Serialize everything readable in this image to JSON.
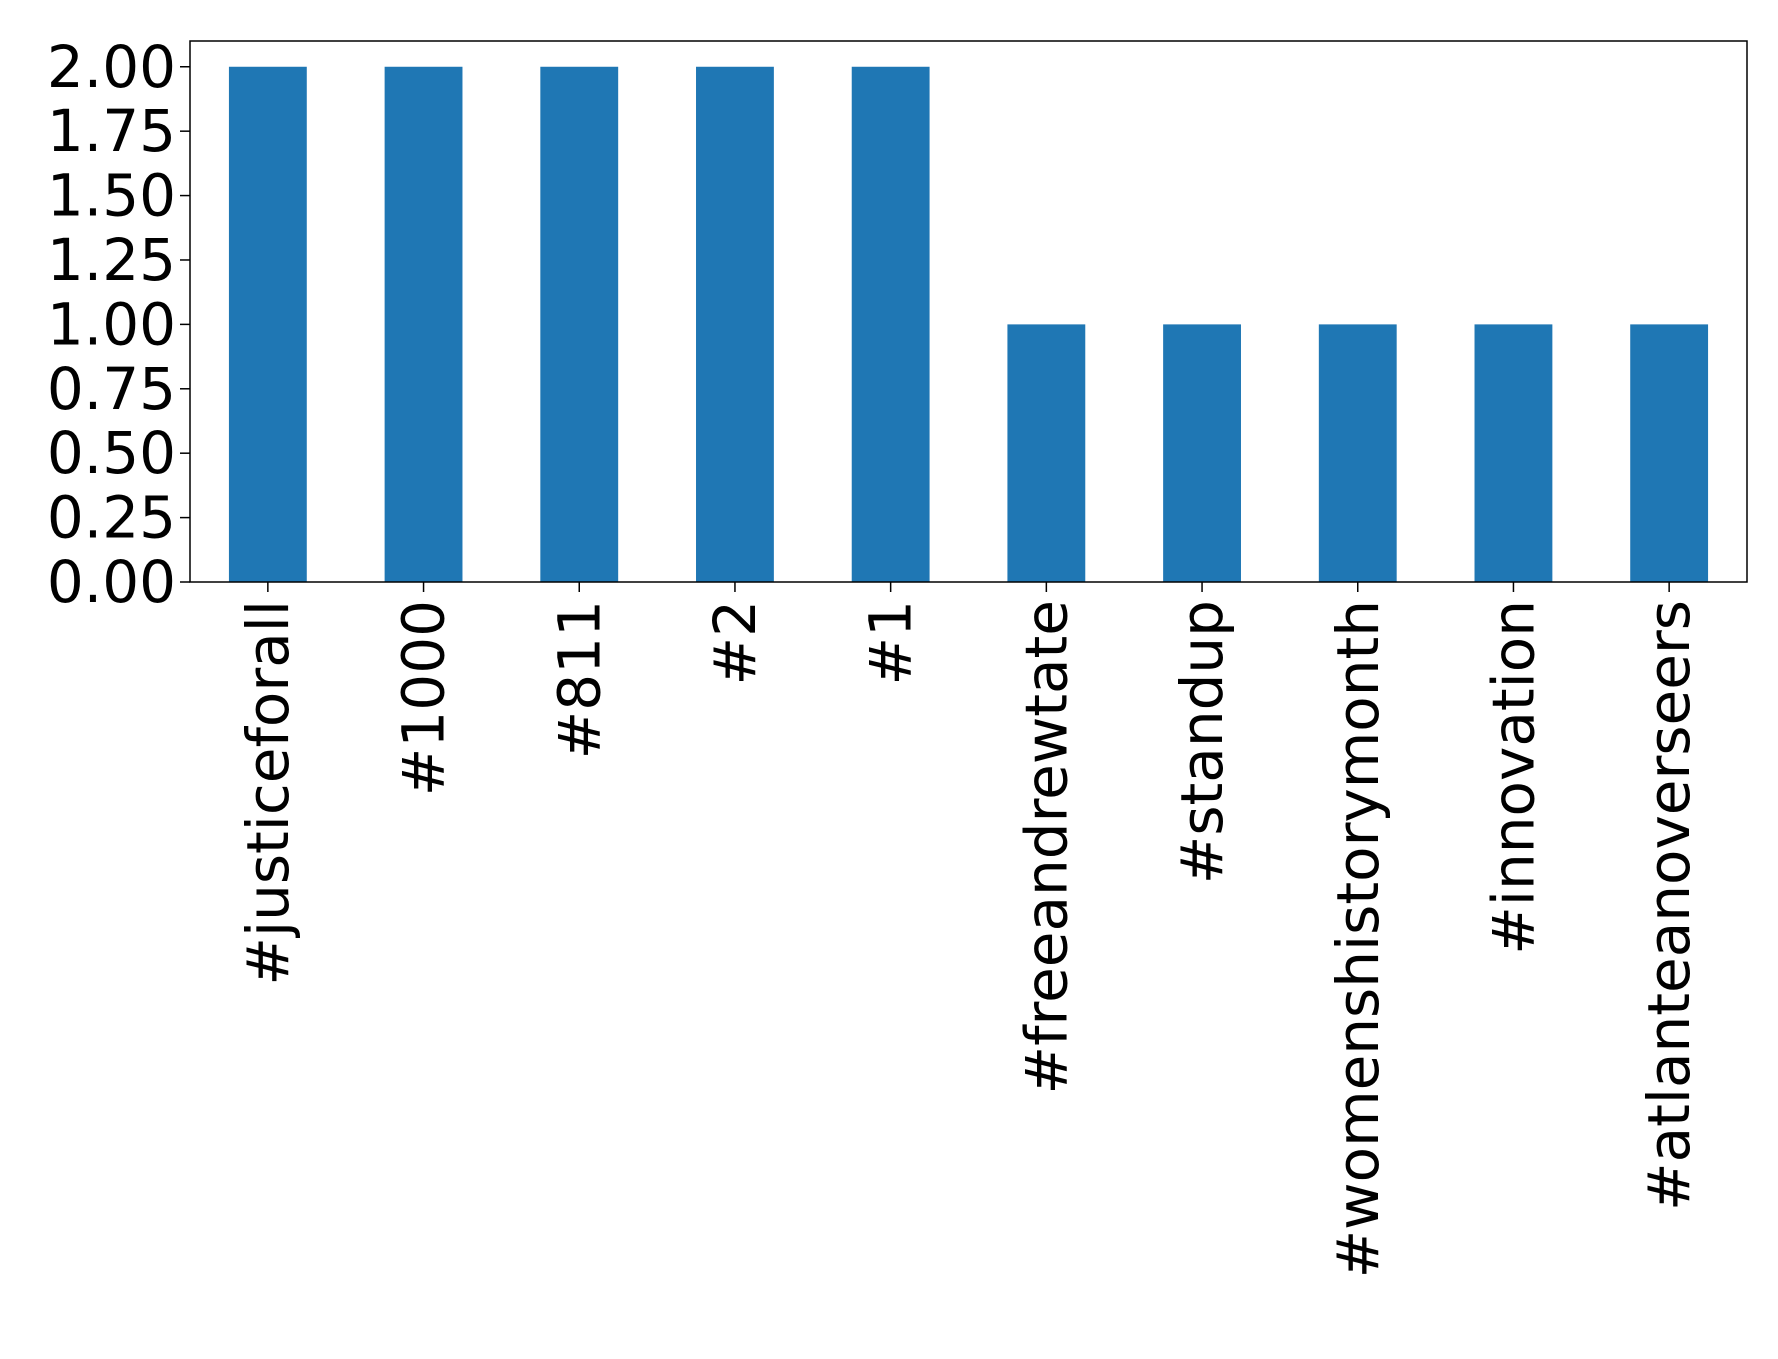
{
  "chart_data": {
    "type": "bar",
    "title": "",
    "xlabel": "",
    "ylabel": "",
    "categories": [
      "#justiceforall",
      "#1000",
      "#811",
      "#2",
      "#1",
      "#freeandrewtate",
      "#standup",
      "#womenshistorymonth",
      "#innovation",
      "#atlanteanoverseers"
    ],
    "values": [
      2,
      2,
      2,
      2,
      2,
      1,
      1,
      1,
      1,
      1
    ],
    "ylim": [
      0,
      2.1
    ],
    "yticks": [
      "0.00",
      "0.25",
      "0.50",
      "0.75",
      "1.00",
      "1.25",
      "1.50",
      "1.75",
      "2.00"
    ],
    "grid": false,
    "legend": "none",
    "colors": {
      "bar": "#1f77b4",
      "axis": "#000000",
      "background": "#ffffff"
    }
  }
}
